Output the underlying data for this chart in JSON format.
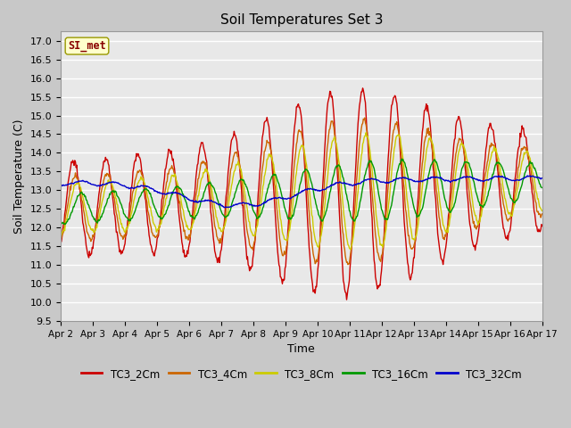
{
  "title": "Soil Temperatures Set 3",
  "xlabel": "Time",
  "ylabel": "Soil Temperature (C)",
  "ylim": [
    9.5,
    17.25
  ],
  "yticks": [
    9.5,
    10.0,
    10.5,
    11.0,
    11.5,
    12.0,
    12.5,
    13.0,
    13.5,
    14.0,
    14.5,
    15.0,
    15.5,
    16.0,
    16.5,
    17.0
  ],
  "xtick_labels": [
    "Apr 2",
    "Apr 3",
    "Apr 4",
    "Apr 5",
    "Apr 6",
    "Apr 7",
    "Apr 8",
    "Apr 9",
    "Apr 10",
    "Apr 11",
    "Apr 12",
    "Apr 13",
    "Apr 14",
    "Apr 15",
    "Apr 16",
    "Apr 17"
  ],
  "series_colors": [
    "#cc0000",
    "#cc6600",
    "#cccc00",
    "#009900",
    "#0000cc"
  ],
  "series_names": [
    "TC3_2Cm",
    "TC3_4Cm",
    "TC3_8Cm",
    "TC3_16Cm",
    "TC3_32Cm"
  ],
  "legend_label": "SI_met",
  "legend_box_color": "#ffffcc",
  "legend_text_color": "#880000",
  "fig_bg_color": "#c8c8c8",
  "plot_bg_color": "#e8e8e8",
  "grid_color": "#ffffff"
}
